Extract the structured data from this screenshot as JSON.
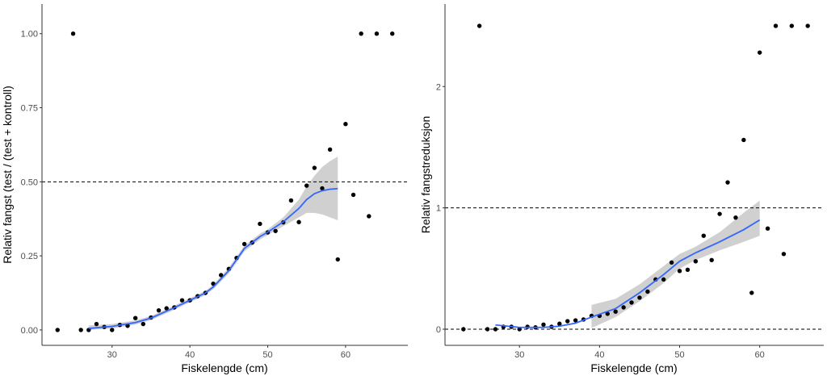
{
  "chart_data": [
    {
      "type": "scatter",
      "title": "",
      "xlabel": "Fiskelengde (cm)",
      "ylabel": "Relativ fangst (test / (test + kontroll)",
      "xlim": [
        21,
        68
      ],
      "ylim": [
        -0.052,
        1.1
      ],
      "xticks": [
        "30",
        "40",
        "50",
        "60"
      ],
      "yticks": [
        "0.00",
        "0.25",
        "0.50",
        "0.75",
        "1.00"
      ],
      "hline": 0.5,
      "hline0": null,
      "grid": false,
      "points": {
        "x": [
          23,
          25,
          26,
          27,
          28,
          29,
          30,
          31,
          32,
          33,
          34,
          35,
          36,
          37,
          38,
          39,
          40,
          41,
          42,
          43,
          44,
          45,
          46,
          47,
          48,
          49,
          50,
          51,
          52,
          53,
          54,
          55,
          56,
          57,
          58,
          59,
          60,
          61,
          62,
          63,
          64,
          66
        ],
        "y": [
          0,
          1,
          0,
          0,
          0.02,
          0.01,
          0,
          0.017,
          0.014,
          0.04,
          0.02,
          0.042,
          0.066,
          0.073,
          0.076,
          0.1,
          0.1,
          0.114,
          0.125,
          0.156,
          0.185,
          0.206,
          0.243,
          0.29,
          0.295,
          0.358,
          0.329,
          0.334,
          0.363,
          0.437,
          0.364,
          0.487,
          0.547,
          0.478,
          0.609,
          0.238,
          0.695,
          0.456,
          1,
          0.384,
          1,
          1
        ]
      },
      "smooth": {
        "x": [
          27,
          30,
          33,
          35,
          38,
          40,
          42,
          43,
          45,
          47,
          49,
          50,
          52,
          54,
          55,
          56,
          57,
          58,
          59
        ],
        "y": [
          0.005,
          0.012,
          0.025,
          0.04,
          0.075,
          0.1,
          0.125,
          0.145,
          0.2,
          0.275,
          0.315,
          0.33,
          0.365,
          0.41,
          0.44,
          0.46,
          0.47,
          0.475,
          0.477
        ],
        "lower": [
          0,
          0.005,
          0.018,
          0.033,
          0.068,
          0.093,
          0.118,
          0.137,
          0.19,
          0.265,
          0.305,
          0.32,
          0.35,
          0.38,
          0.395,
          0.395,
          0.39,
          0.38,
          0.37
        ],
        "upper": [
          0.015,
          0.02,
          0.032,
          0.047,
          0.082,
          0.107,
          0.132,
          0.153,
          0.21,
          0.285,
          0.325,
          0.34,
          0.38,
          0.44,
          0.485,
          0.52,
          0.55,
          0.57,
          0.585
        ]
      },
      "colors": {
        "smooth": "#3366FF",
        "band": "#c8c8c8",
        "point": "#000000"
      }
    },
    {
      "type": "scatter",
      "title": "",
      "xlabel": "Fiskelengde (cm)",
      "ylabel": "Relativ fangstreduksjon",
      "xlim": [
        20.7,
        68
      ],
      "ylim": [
        -0.133,
        2.68
      ],
      "xticks": [
        "30",
        "40",
        "50",
        "60"
      ],
      "yticks": [
        "0",
        "1",
        "2"
      ],
      "hline": 1,
      "hline0": 0,
      "grid": false,
      "points": {
        "x": [
          23,
          25,
          26,
          27,
          28,
          29,
          30,
          31,
          32,
          33,
          34,
          35,
          36,
          37,
          38,
          39,
          40,
          41,
          42,
          43,
          44,
          45,
          46,
          47,
          48,
          49,
          50,
          51,
          52,
          53,
          54,
          55,
          56,
          57,
          58,
          59,
          60,
          61,
          62,
          63,
          64,
          66
        ],
        "y": [
          0,
          2.5,
          0,
          0,
          0.02,
          0.02,
          0,
          0.02,
          0.015,
          0.038,
          0.02,
          0.045,
          0.066,
          0.073,
          0.08,
          0.11,
          0.11,
          0.127,
          0.145,
          0.18,
          0.22,
          0.26,
          0.31,
          0.41,
          0.41,
          0.55,
          0.48,
          0.49,
          0.56,
          0.77,
          0.57,
          0.95,
          1.21,
          0.92,
          1.56,
          0.3,
          2.28,
          0.83,
          2.5,
          0.62,
          2.5,
          2.5
        ]
      },
      "smooth": {
        "x": [
          27,
          30,
          33,
          35,
          37,
          39,
          42,
          45,
          48,
          50,
          52,
          55,
          58,
          60
        ],
        "y": [
          0.035,
          0.015,
          0.015,
          0.025,
          0.05,
          0.1,
          0.17,
          0.3,
          0.45,
          0.56,
          0.63,
          0.72,
          0.82,
          0.9
        ],
        "lower": [
          null,
          null,
          null,
          null,
          null,
          0.01,
          0.1,
          0.23,
          0.38,
          0.5,
          0.57,
          0.65,
          0.72,
          0.77
        ],
        "upper": [
          null,
          null,
          null,
          null,
          null,
          0.2,
          0.25,
          0.37,
          0.52,
          0.62,
          0.68,
          0.8,
          0.96,
          1.06
        ]
      },
      "colors": {
        "smooth": "#3366FF",
        "band": "#c8c8c8",
        "point": "#000000"
      }
    }
  ]
}
